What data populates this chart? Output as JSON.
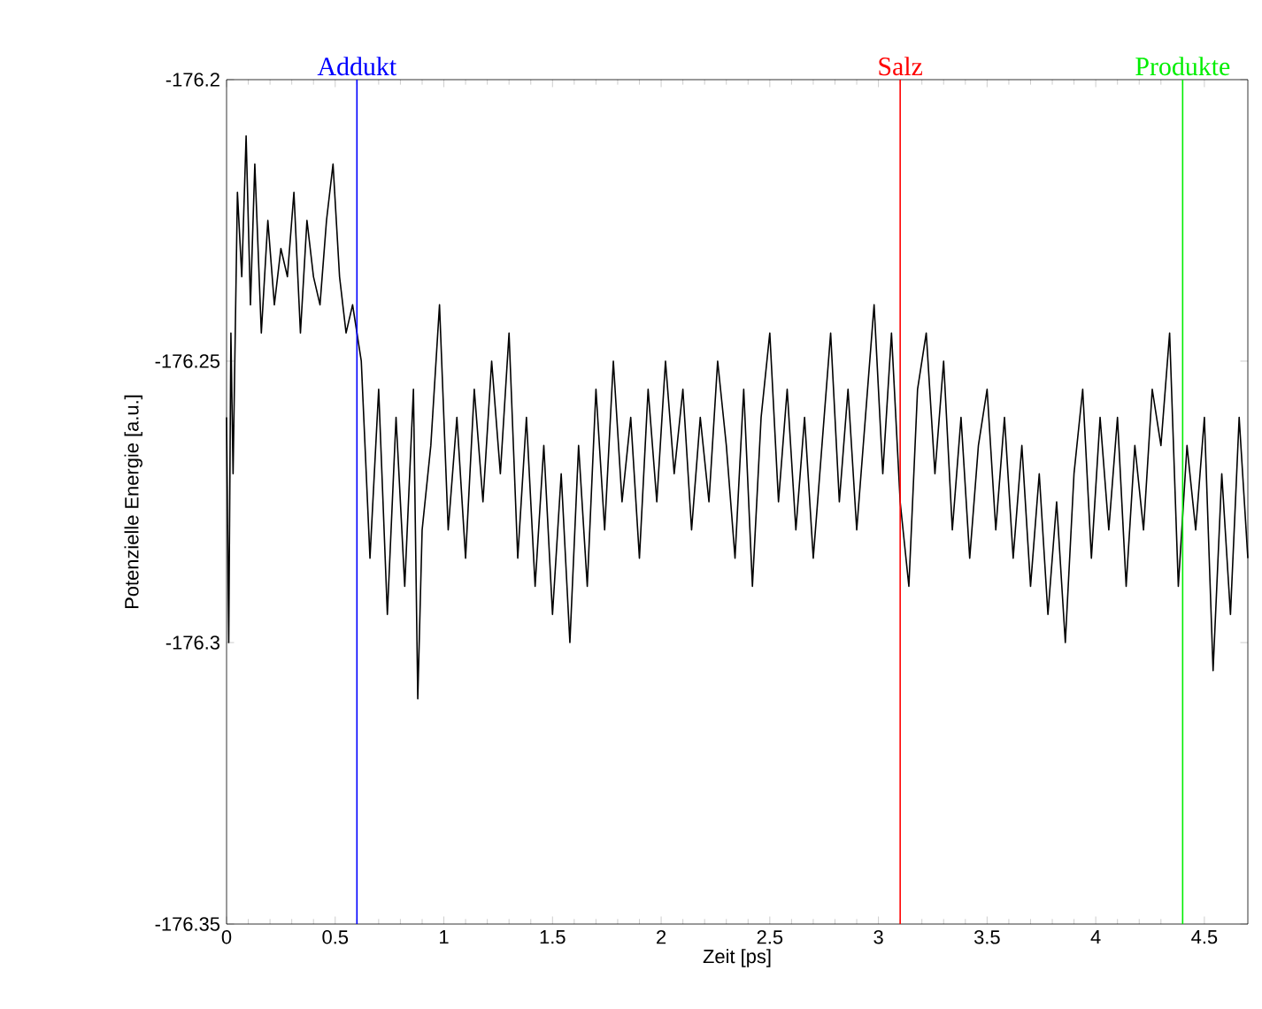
{
  "chart_data": {
    "type": "line",
    "xlabel": "Zeit [ps]",
    "ylabel": "Potenzielle Energie [a.u.]",
    "xlim": [
      0,
      4.7
    ],
    "ylim": [
      -176.35,
      -176.2
    ],
    "xticks": [
      0,
      0.5,
      1,
      1.5,
      2,
      2.5,
      3,
      3.5,
      4,
      4.5
    ],
    "yticks": [
      -176.35,
      -176.3,
      -176.25,
      -176.2
    ],
    "marker": "none",
    "line_style": "solid",
    "x": [
      0,
      0.01,
      0.02,
      0.03,
      0.05,
      0.07,
      0.09,
      0.11,
      0.13,
      0.16,
      0.19,
      0.22,
      0.25,
      0.28,
      0.31,
      0.34,
      0.37,
      0.4,
      0.43,
      0.46,
      0.49,
      0.52,
      0.55,
      0.58,
      0.62,
      0.66,
      0.7,
      0.74,
      0.78,
      0.82,
      0.86,
      0.88,
      0.9,
      0.94,
      0.98,
      1.02,
      1.06,
      1.1,
      1.14,
      1.18,
      1.22,
      1.26,
      1.3,
      1.34,
      1.38,
      1.42,
      1.46,
      1.5,
      1.54,
      1.58,
      1.62,
      1.66,
      1.7,
      1.74,
      1.78,
      1.82,
      1.86,
      1.9,
      1.94,
      1.98,
      2.02,
      2.06,
      2.1,
      2.14,
      2.18,
      2.22,
      2.26,
      2.3,
      2.34,
      2.38,
      2.42,
      2.46,
      2.5,
      2.54,
      2.58,
      2.62,
      2.66,
      2.7,
      2.74,
      2.78,
      2.82,
      2.86,
      2.9,
      2.94,
      2.98,
      3.02,
      3.06,
      3.1,
      3.14,
      3.18,
      3.22,
      3.26,
      3.3,
      3.34,
      3.38,
      3.42,
      3.46,
      3.5,
      3.54,
      3.58,
      3.62,
      3.66,
      3.7,
      3.74,
      3.78,
      3.82,
      3.86,
      3.9,
      3.94,
      3.98,
      4.02,
      4.06,
      4.1,
      4.14,
      4.18,
      4.22,
      4.26,
      4.3,
      4.34,
      4.38,
      4.42,
      4.46,
      4.5,
      4.54,
      4.58,
      4.62,
      4.66,
      4.7
    ],
    "series": [
      {
        "color": "#000000",
        "values": [
          -176.26,
          -176.3,
          -176.245,
          -176.27,
          -176.22,
          -176.235,
          -176.21,
          -176.24,
          -176.215,
          -176.245,
          -176.225,
          -176.24,
          -176.23,
          -176.235,
          -176.22,
          -176.245,
          -176.225,
          -176.235,
          -176.24,
          -176.225,
          -176.215,
          -176.235,
          -176.245,
          -176.24,
          -176.25,
          -176.285,
          -176.255,
          -176.295,
          -176.26,
          -176.29,
          -176.255,
          -176.31,
          -176.28,
          -176.265,
          -176.24,
          -176.28,
          -176.26,
          -176.285,
          -176.255,
          -176.275,
          -176.25,
          -176.27,
          -176.245,
          -176.285,
          -176.26,
          -176.29,
          -176.265,
          -176.295,
          -176.27,
          -176.3,
          -176.265,
          -176.29,
          -176.255,
          -176.28,
          -176.25,
          -176.275,
          -176.26,
          -176.285,
          -176.255,
          -176.275,
          -176.25,
          -176.27,
          -176.255,
          -176.28,
          -176.26,
          -176.275,
          -176.25,
          -176.265,
          -176.285,
          -176.255,
          -176.29,
          -176.26,
          -176.245,
          -176.275,
          -176.255,
          -176.28,
          -176.26,
          -176.285,
          -176.265,
          -176.245,
          -176.275,
          -176.255,
          -176.28,
          -176.26,
          -176.24,
          -176.27,
          -176.245,
          -176.275,
          -176.29,
          -176.255,
          -176.245,
          -176.27,
          -176.25,
          -176.28,
          -176.26,
          -176.285,
          -176.265,
          -176.255,
          -176.28,
          -176.26,
          -176.285,
          -176.265,
          -176.29,
          -176.27,
          -176.295,
          -176.275,
          -176.3,
          -176.27,
          -176.255,
          -176.285,
          -176.26,
          -176.28,
          -176.26,
          -176.29,
          -176.265,
          -176.28,
          -176.255,
          -176.265,
          -176.245,
          -176.29,
          -176.265,
          -176.28,
          -176.26,
          -176.305,
          -176.27,
          -176.295,
          -176.26,
          -176.285
        ]
      }
    ],
    "ref_lines": [
      {
        "axis": "x",
        "value": 0.6,
        "label": "Addukt",
        "color": "#0000ff"
      },
      {
        "axis": "x",
        "value": 3.1,
        "label": "Salz",
        "color": "#ff0000"
      },
      {
        "axis": "x",
        "value": 4.4,
        "label": "Produkte",
        "color": "#00ee00"
      }
    ]
  }
}
